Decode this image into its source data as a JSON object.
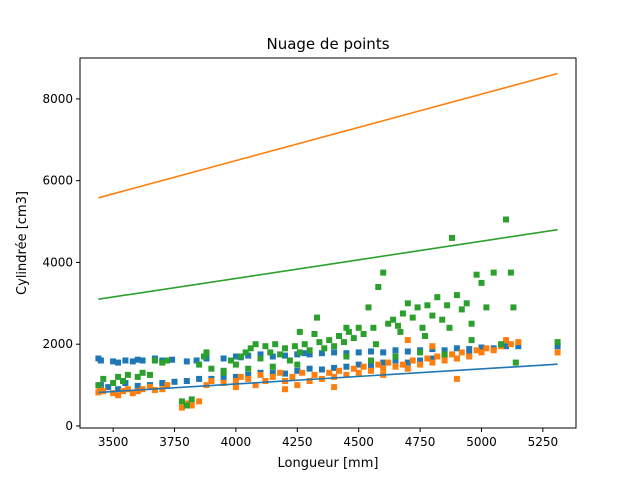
{
  "chart_data": {
    "type": "scatter",
    "title": "Nuage de points",
    "xlabel": "Longueur [mm]",
    "ylabel": "Cylindrée [cm3]",
    "xlim": [
      3365,
      5385
    ],
    "ylim": [
      -50,
      9000
    ],
    "xticks": [
      3500,
      3750,
      4000,
      4250,
      4500,
      4750,
      5000,
      5250
    ],
    "yticks": [
      0,
      2000,
      4000,
      6000,
      8000
    ],
    "grid": false,
    "legend": "none",
    "colors": {
      "blue": "#1f77b4",
      "orange": "#ff7f0e",
      "green": "#2ca02c"
    },
    "marker": "square",
    "lines": [
      {
        "color": "#1f77b4",
        "x": [
          3440,
          5310
        ],
        "y": [
          820,
          1510
        ]
      },
      {
        "color": "#ff7f0e",
        "x": [
          3440,
          5310
        ],
        "y": [
          5580,
          8620
        ]
      },
      {
        "color": "#2ca02c",
        "x": [
          3440,
          5310
        ],
        "y": [
          3100,
          4800
        ]
      }
    ],
    "series": [
      {
        "color": "#1f77b4",
        "points": [
          [
            3440,
            1650
          ],
          [
            3450,
            1600
          ],
          [
            3500,
            1580
          ],
          [
            3520,
            1550
          ],
          [
            3550,
            1600
          ],
          [
            3580,
            1580
          ],
          [
            3600,
            1620
          ],
          [
            3620,
            1600
          ],
          [
            3670,
            1650
          ],
          [
            3700,
            1600
          ],
          [
            3740,
            1620
          ],
          [
            3800,
            1580
          ],
          [
            3840,
            1600
          ],
          [
            3880,
            1650
          ],
          [
            3950,
            1650
          ],
          [
            4000,
            1700
          ],
          [
            4020,
            1680
          ],
          [
            4050,
            1720
          ],
          [
            4100,
            1750
          ],
          [
            4150,
            1700
          ],
          [
            4200,
            1720
          ],
          [
            4250,
            1750
          ],
          [
            4280,
            1780
          ],
          [
            4300,
            1750
          ],
          [
            4350,
            1780
          ],
          [
            4400,
            1800
          ],
          [
            4450,
            1780
          ],
          [
            4500,
            1800
          ],
          [
            4550,
            1820
          ],
          [
            4600,
            1800
          ],
          [
            4650,
            1850
          ],
          [
            4700,
            1820
          ],
          [
            4750,
            1850
          ],
          [
            4800,
            1880
          ],
          [
            4850,
            1850
          ],
          [
            4900,
            1900
          ],
          [
            4950,
            1880
          ],
          [
            5000,
            1920
          ],
          [
            5050,
            1900
          ],
          [
            5100,
            1950
          ],
          [
            5150,
            1950
          ],
          [
            5310,
            1950
          ],
          [
            3450,
            1000
          ],
          [
            3480,
            950
          ],
          [
            3520,
            900
          ],
          [
            3550,
            1050
          ],
          [
            3600,
            980
          ],
          [
            3650,
            1000
          ],
          [
            3700,
            1050
          ],
          [
            3750,
            1080
          ],
          [
            3800,
            1100
          ],
          [
            3850,
            1150
          ],
          [
            3900,
            1150
          ],
          [
            3950,
            1200
          ],
          [
            4000,
            1200
          ],
          [
            4050,
            1250
          ],
          [
            4100,
            1300
          ],
          [
            4150,
            1300
          ],
          [
            4200,
            1280
          ],
          [
            4250,
            1350
          ],
          [
            4300,
            1400
          ],
          [
            4350,
            1380
          ],
          [
            4400,
            1420
          ],
          [
            4450,
            1450
          ],
          [
            4500,
            1500
          ],
          [
            4550,
            1480
          ],
          [
            4600,
            1550
          ],
          [
            4650,
            1600
          ],
          [
            4700,
            1550
          ],
          [
            4750,
            1600
          ],
          [
            4800,
            1650
          ],
          [
            4850,
            1700
          ],
          [
            4900,
            1650
          ],
          [
            4950,
            1750
          ]
        ]
      },
      {
        "color": "#ff7f0e",
        "points": [
          [
            3440,
            820
          ],
          [
            3445,
            900
          ],
          [
            3460,
            850
          ],
          [
            3500,
            800
          ],
          [
            3520,
            750
          ],
          [
            3540,
            850
          ],
          [
            3560,
            900
          ],
          [
            3580,
            800
          ],
          [
            3600,
            850
          ],
          [
            3620,
            900
          ],
          [
            3650,
            950
          ],
          [
            3670,
            880
          ],
          [
            3700,
            900
          ],
          [
            3720,
            1000
          ],
          [
            3780,
            450
          ],
          [
            3800,
            550
          ],
          [
            3820,
            500
          ],
          [
            3850,
            600
          ],
          [
            3880,
            1000
          ],
          [
            3900,
            1100
          ],
          [
            3950,
            1050
          ],
          [
            4000,
            1100
          ],
          [
            4020,
            1200
          ],
          [
            4050,
            1150
          ],
          [
            4080,
            1000
          ],
          [
            4100,
            1250
          ],
          [
            4120,
            1100
          ],
          [
            4150,
            1200
          ],
          [
            4180,
            1300
          ],
          [
            4200,
            1100
          ],
          [
            4230,
            1200
          ],
          [
            4250,
            1000
          ],
          [
            4270,
            1300
          ],
          [
            4300,
            1100
          ],
          [
            4320,
            1250
          ],
          [
            4350,
            1150
          ],
          [
            4380,
            1300
          ],
          [
            4400,
            1200
          ],
          [
            4420,
            1350
          ],
          [
            4450,
            1250
          ],
          [
            4480,
            1400
          ],
          [
            4500,
            1300
          ],
          [
            4520,
            1450
          ],
          [
            4550,
            1350
          ],
          [
            4580,
            1500
          ],
          [
            4600,
            1400
          ],
          [
            4620,
            1550
          ],
          [
            4650,
            1450
          ],
          [
            4680,
            1500
          ],
          [
            4700,
            1400
          ],
          [
            4720,
            1600
          ],
          [
            4750,
            1500
          ],
          [
            4780,
            1650
          ],
          [
            4800,
            1550
          ],
          [
            4820,
            1700
          ],
          [
            4850,
            1600
          ],
          [
            4880,
            1750
          ],
          [
            4900,
            1650
          ],
          [
            4920,
            1800
          ],
          [
            4950,
            1700
          ],
          [
            4980,
            1850
          ],
          [
            5000,
            1800
          ],
          [
            5020,
            1900
          ],
          [
            5050,
            1850
          ],
          [
            5080,
            1950
          ],
          [
            5100,
            2100
          ],
          [
            5120,
            2000
          ],
          [
            5150,
            2050
          ],
          [
            5310,
            1800
          ],
          [
            4700,
            2100
          ],
          [
            4800,
            1950
          ],
          [
            4900,
            1150
          ],
          [
            4600,
            1250
          ],
          [
            4400,
            950
          ],
          [
            4200,
            900
          ],
          [
            4000,
            950
          ]
        ]
      },
      {
        "color": "#2ca02c",
        "points": [
          [
            3440,
            1000
          ],
          [
            3460,
            1150
          ],
          [
            3500,
            1050
          ],
          [
            3520,
            1200
          ],
          [
            3540,
            1100
          ],
          [
            3560,
            1250
          ],
          [
            3600,
            1200
          ],
          [
            3620,
            1300
          ],
          [
            3650,
            1250
          ],
          [
            3670,
            1600
          ],
          [
            3700,
            1550
          ],
          [
            3720,
            1600
          ],
          [
            3780,
            600
          ],
          [
            3800,
            500
          ],
          [
            3820,
            650
          ],
          [
            3850,
            1500
          ],
          [
            3870,
            1700
          ],
          [
            3880,
            1800
          ],
          [
            3900,
            1400
          ],
          [
            3950,
            1350
          ],
          [
            3980,
            1600
          ],
          [
            4000,
            1500
          ],
          [
            4020,
            1700
          ],
          [
            4040,
            1800
          ],
          [
            4060,
            1900
          ],
          [
            4080,
            2000
          ],
          [
            4100,
            1650
          ],
          [
            4120,
            1950
          ],
          [
            4140,
            1800
          ],
          [
            4160,
            2000
          ],
          [
            4180,
            1750
          ],
          [
            4200,
            1900
          ],
          [
            4220,
            1600
          ],
          [
            4240,
            1950
          ],
          [
            4260,
            1800
          ],
          [
            4280,
            2000
          ],
          [
            4300,
            1850
          ],
          [
            4320,
            2250
          ],
          [
            4340,
            2050
          ],
          [
            4360,
            1900
          ],
          [
            4380,
            2100
          ],
          [
            4400,
            1950
          ],
          [
            4420,
            2200
          ],
          [
            4440,
            2050
          ],
          [
            4460,
            2300
          ],
          [
            4480,
            2150
          ],
          [
            4500,
            2400
          ],
          [
            4520,
            2250
          ],
          [
            4540,
            2900
          ],
          [
            4560,
            2400
          ],
          [
            4580,
            3400
          ],
          [
            4600,
            3750
          ],
          [
            4620,
            2500
          ],
          [
            4640,
            2600
          ],
          [
            4660,
            2450
          ],
          [
            4680,
            2750
          ],
          [
            4700,
            3000
          ],
          [
            4720,
            2650
          ],
          [
            4740,
            2900
          ],
          [
            4760,
            2400
          ],
          [
            4780,
            2950
          ],
          [
            4800,
            2700
          ],
          [
            4820,
            3150
          ],
          [
            4840,
            2600
          ],
          [
            4860,
            2950
          ],
          [
            4880,
            4600
          ],
          [
            4900,
            3200
          ],
          [
            4920,
            2850
          ],
          [
            4940,
            3000
          ],
          [
            4960,
            2500
          ],
          [
            4980,
            3700
          ],
          [
            5000,
            3500
          ],
          [
            5020,
            2900
          ],
          [
            5050,
            3750
          ],
          [
            5080,
            2000
          ],
          [
            5100,
            5050
          ],
          [
            5120,
            3750
          ],
          [
            5130,
            2900
          ],
          [
            5140,
            1550
          ],
          [
            5310,
            2050
          ],
          [
            4330,
            2650
          ],
          [
            4260,
            2300
          ],
          [
            4450,
            2400
          ],
          [
            4570,
            2000
          ],
          [
            4670,
            2300
          ],
          [
            4770,
            2200
          ],
          [
            4870,
            2400
          ],
          [
            4960,
            2100
          ],
          [
            4450,
            1700
          ],
          [
            4550,
            1600
          ],
          [
            4650,
            1700
          ],
          [
            4750,
            1800
          ],
          [
            4850,
            1750
          ],
          [
            4250,
            1500
          ],
          [
            4150,
            1450
          ],
          [
            4050,
            1400
          ],
          [
            3950,
            1300
          ]
        ]
      }
    ]
  }
}
